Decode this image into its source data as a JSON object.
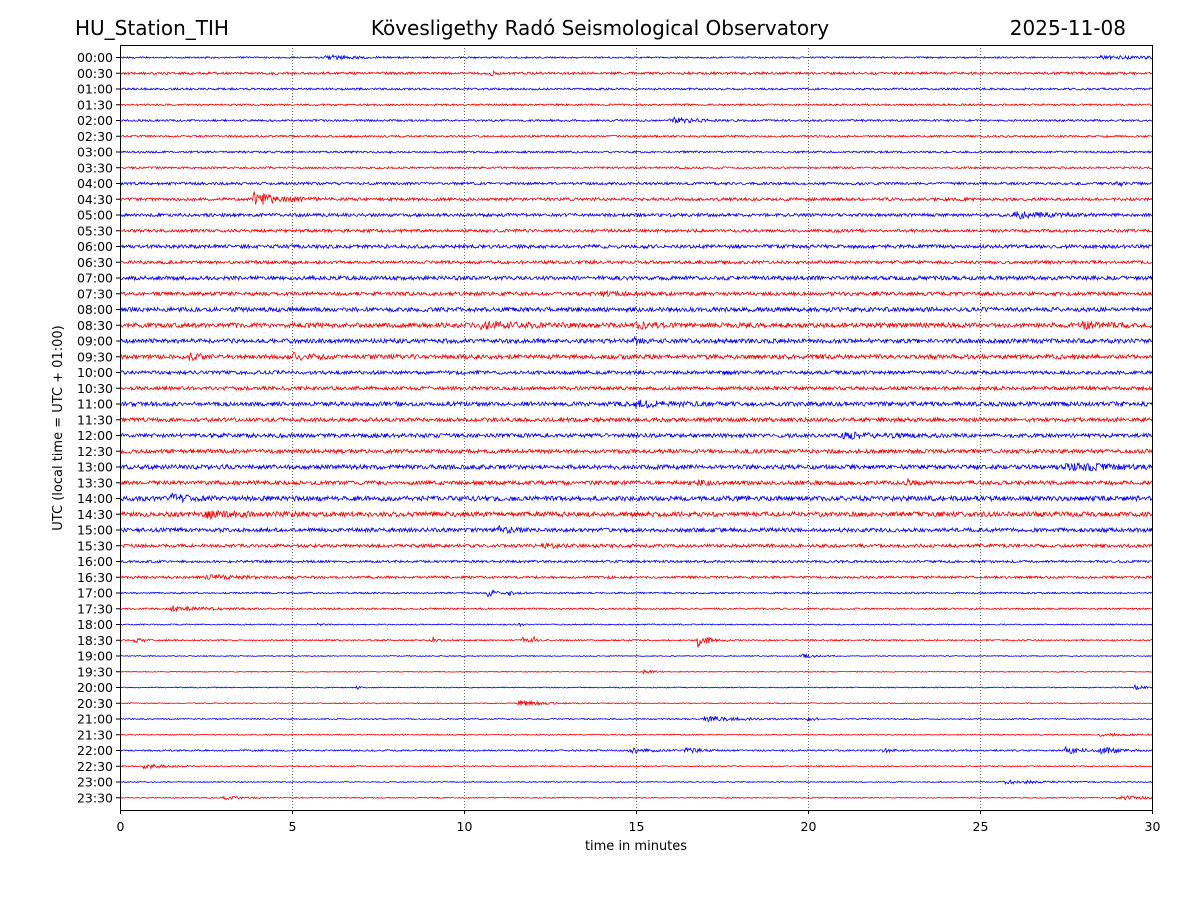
{
  "header": {
    "station": "HU_Station_TIH",
    "observatory": "Kövesligethy Radó Seismological Observatory",
    "date": "2025-11-08"
  },
  "chart_data": {
    "type": "line",
    "subtype": "helicorder",
    "title": "Kövesligethy Radó Seismological Observatory",
    "xlabel": "time in minutes",
    "ylabel": "UTC (local time = UTC + 01:00)",
    "xlim": [
      0,
      30
    ],
    "x_ticks": [
      0,
      5,
      10,
      15,
      20,
      25,
      30
    ],
    "x_tick_labels": [
      "0",
      "5",
      "10",
      "15",
      "20",
      "25",
      "30"
    ],
    "grid": "vertical dotted lines at 5-minute ticks",
    "trace_colors": [
      "#0000ff",
      "#ff0000"
    ],
    "rows": [
      {
        "label": "00:00",
        "noise": 0.8,
        "events": [
          {
            "t": 6.0,
            "amp": 3,
            "dur": 0.6
          },
          {
            "t": 28.5,
            "amp": 1.5,
            "dur": 1.5
          }
        ]
      },
      {
        "label": "00:30",
        "noise": 1.2,
        "events": [
          {
            "t": 10.8,
            "amp": 2,
            "dur": 0.1
          }
        ]
      },
      {
        "label": "01:00",
        "noise": 1.0,
        "events": []
      },
      {
        "label": "01:30",
        "noise": 0.9,
        "events": []
      },
      {
        "label": "02:00",
        "noise": 1.0,
        "events": [
          {
            "t": 16.0,
            "amp": 2.5,
            "dur": 0.8
          }
        ]
      },
      {
        "label": "02:30",
        "noise": 1.0,
        "events": []
      },
      {
        "label": "03:00",
        "noise": 1.0,
        "events": []
      },
      {
        "label": "03:30",
        "noise": 1.0,
        "events": []
      },
      {
        "label": "04:00",
        "noise": 1.3,
        "events": [
          {
            "t": 29.0,
            "amp": 2,
            "dur": 0.3
          }
        ]
      },
      {
        "label": "04:30",
        "noise": 1.5,
        "events": [
          {
            "t": 3.9,
            "amp": 6,
            "dur": 0.7
          }
        ]
      },
      {
        "label": "05:00",
        "noise": 1.6,
        "events": [
          {
            "t": 26.0,
            "amp": 3,
            "dur": 0.8
          }
        ]
      },
      {
        "label": "05:30",
        "noise": 1.5,
        "events": []
      },
      {
        "label": "06:00",
        "noise": 1.8,
        "events": []
      },
      {
        "label": "06:30",
        "noise": 1.6,
        "events": []
      },
      {
        "label": "07:00",
        "noise": 2.0,
        "events": []
      },
      {
        "label": "07:30",
        "noise": 1.8,
        "events": [
          {
            "t": 14.0,
            "amp": 2,
            "dur": 0.6
          }
        ]
      },
      {
        "label": "08:00",
        "noise": 2.2,
        "events": []
      },
      {
        "label": "08:30",
        "noise": 2.4,
        "events": [
          {
            "t": 10.5,
            "amp": 3,
            "dur": 1.0
          },
          {
            "t": 15.0,
            "amp": 3,
            "dur": 0.4
          },
          {
            "t": 28.0,
            "amp": 3,
            "dur": 0.4
          }
        ]
      },
      {
        "label": "09:00",
        "noise": 2.2,
        "events": [
          {
            "t": 14.9,
            "amp": 3,
            "dur": 0.2
          }
        ]
      },
      {
        "label": "09:30",
        "noise": 2.2,
        "events": [
          {
            "t": 2.0,
            "amp": 3,
            "dur": 0.3
          },
          {
            "t": 5.0,
            "amp": 4,
            "dur": 0.4
          }
        ]
      },
      {
        "label": "10:00",
        "noise": 1.8,
        "events": []
      },
      {
        "label": "10:30",
        "noise": 1.8,
        "events": []
      },
      {
        "label": "11:00",
        "noise": 2.2,
        "events": [
          {
            "t": 15.0,
            "amp": 2.5,
            "dur": 0.8
          }
        ]
      },
      {
        "label": "11:30",
        "noise": 2.0,
        "events": []
      },
      {
        "label": "12:00",
        "noise": 2.0,
        "events": [
          {
            "t": 21.0,
            "amp": 2.5,
            "dur": 1.0
          }
        ]
      },
      {
        "label": "12:30",
        "noise": 2.0,
        "events": []
      },
      {
        "label": "13:00",
        "noise": 2.2,
        "events": [
          {
            "t": 27.5,
            "amp": 2.5,
            "dur": 1.5
          }
        ]
      },
      {
        "label": "13:30",
        "noise": 2.0,
        "events": [
          {
            "t": 16.8,
            "amp": 2.5,
            "dur": 0.3
          },
          {
            "t": 22.9,
            "amp": 2.5,
            "dur": 0.2
          }
        ]
      },
      {
        "label": "14:00",
        "noise": 2.4,
        "events": [
          {
            "t": 1.5,
            "amp": 3,
            "dur": 0.5
          }
        ]
      },
      {
        "label": "14:30",
        "noise": 2.4,
        "events": [
          {
            "t": 2.5,
            "amp": 3,
            "dur": 1.0
          }
        ]
      },
      {
        "label": "15:00",
        "noise": 2.0,
        "events": [
          {
            "t": 11.0,
            "amp": 2.5,
            "dur": 0.5
          }
        ]
      },
      {
        "label": "15:30",
        "noise": 1.6,
        "events": [
          {
            "t": 12.3,
            "amp": 2,
            "dur": 0.5
          }
        ]
      },
      {
        "label": "16:00",
        "noise": 1.2,
        "events": []
      },
      {
        "label": "16:30",
        "noise": 1.2,
        "events": [
          {
            "t": 2.5,
            "amp": 2,
            "dur": 1.0
          }
        ]
      },
      {
        "label": "17:00",
        "noise": 0.8,
        "events": [
          {
            "t": 10.7,
            "amp": 4,
            "dur": 0.2
          },
          {
            "t": 11.3,
            "amp": 3,
            "dur": 0.2
          }
        ]
      },
      {
        "label": "17:30",
        "noise": 0.8,
        "events": [
          {
            "t": 1.5,
            "amp": 2.5,
            "dur": 0.9
          }
        ]
      },
      {
        "label": "18:00",
        "noise": 0.6,
        "events": [
          {
            "t": 5.7,
            "amp": 1.5,
            "dur": 0.1
          },
          {
            "t": 11.6,
            "amp": 1.5,
            "dur": 0.1
          }
        ]
      },
      {
        "label": "18:30",
        "noise": 0.8,
        "events": [
          {
            "t": 0.4,
            "amp": 3,
            "dur": 0.2
          },
          {
            "t": 9.1,
            "amp": 3,
            "dur": 0.1
          },
          {
            "t": 11.7,
            "amp": 4,
            "dur": 0.1
          },
          {
            "t": 12.0,
            "amp": 4,
            "dur": 0.1
          },
          {
            "t": 16.8,
            "amp": 7,
            "dur": 0.3
          }
        ]
      },
      {
        "label": "19:00",
        "noise": 0.5,
        "events": [
          {
            "t": 19.8,
            "amp": 2,
            "dur": 0.4
          }
        ]
      },
      {
        "label": "19:30",
        "noise": 0.5,
        "events": [
          {
            "t": 15.2,
            "amp": 1.5,
            "dur": 0.3
          }
        ]
      },
      {
        "label": "20:00",
        "noise": 0.5,
        "events": [
          {
            "t": 6.9,
            "amp": 1.5,
            "dur": 0.1
          },
          {
            "t": 29.5,
            "amp": 2,
            "dur": 0.3
          }
        ]
      },
      {
        "label": "20:30",
        "noise": 0.5,
        "events": [
          {
            "t": 11.6,
            "amp": 3,
            "dur": 0.6
          }
        ]
      },
      {
        "label": "21:00",
        "noise": 0.6,
        "events": [
          {
            "t": 17.0,
            "amp": 2.5,
            "dur": 1.0
          },
          {
            "t": 20.0,
            "amp": 1.5,
            "dur": 0.3
          }
        ]
      },
      {
        "label": "21:30",
        "noise": 0.5,
        "events": [
          {
            "t": 28.5,
            "amp": 1.5,
            "dur": 1.0
          }
        ]
      },
      {
        "label": "22:00",
        "noise": 0.8,
        "events": [
          {
            "t": 14.8,
            "amp": 2.5,
            "dur": 0.5
          },
          {
            "t": 16.4,
            "amp": 3,
            "dur": 0.4
          },
          {
            "t": 22.2,
            "amp": 2,
            "dur": 0.2
          },
          {
            "t": 27.5,
            "amp": 3.5,
            "dur": 0.5
          },
          {
            "t": 28.5,
            "amp": 2.5,
            "dur": 0.6
          }
        ]
      },
      {
        "label": "22:30",
        "noise": 0.6,
        "events": [
          {
            "t": 0.7,
            "amp": 2.5,
            "dur": 0.5
          }
        ]
      },
      {
        "label": "23:00",
        "noise": 0.5,
        "events": [
          {
            "t": 25.7,
            "amp": 2.0,
            "dur": 1.0
          }
        ]
      },
      {
        "label": "23:30",
        "noise": 0.5,
        "events": [
          {
            "t": 3.0,
            "amp": 2.0,
            "dur": 0.5
          },
          {
            "t": 29.0,
            "amp": 2.0,
            "dur": 1.3
          }
        ]
      }
    ]
  }
}
